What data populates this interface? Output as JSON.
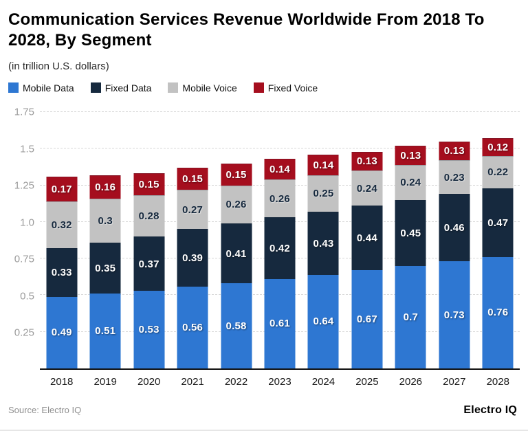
{
  "header": {
    "title": "Communication Services Revenue Worldwide From 2018 To 2028, By Segment",
    "subtitle": "(in trillion U.S. dollars)"
  },
  "legend": [
    {
      "label": "Mobile Data",
      "color": "#2e77d2"
    },
    {
      "label": "Fixed Data",
      "color": "#16293e"
    },
    {
      "label": "Mobile Voice",
      "color": "#c2c2c2"
    },
    {
      "label": "Fixed Voice",
      "color": "#a50e1e"
    }
  ],
  "chart_data": {
    "type": "bar",
    "stacked": true,
    "title": "Communication Services Revenue Worldwide From 2018 To 2028, By Segment",
    "unit_note": "(in trillion U.S. dollars)",
    "categories": [
      "2018",
      "2019",
      "2020",
      "2021",
      "2022",
      "2023",
      "2024",
      "2025",
      "2026",
      "2027",
      "2028"
    ],
    "series": [
      {
        "name": "Mobile Data",
        "color": "#2e77d2",
        "label_color": "#ffffff",
        "values": [
          0.49,
          0.51,
          0.53,
          0.56,
          0.58,
          0.61,
          0.64,
          0.67,
          0.7,
          0.73,
          0.76
        ]
      },
      {
        "name": "Fixed Data",
        "color": "#16293e",
        "label_color": "#ffffff",
        "values": [
          0.33,
          0.35,
          0.37,
          0.39,
          0.41,
          0.42,
          0.43,
          0.44,
          0.45,
          0.46,
          0.47
        ]
      },
      {
        "name": "Mobile Voice",
        "color": "#c2c2c2",
        "label_color": "#16293e",
        "values": [
          0.32,
          0.3,
          0.28,
          0.27,
          0.26,
          0.26,
          0.25,
          0.24,
          0.24,
          0.23,
          0.22
        ]
      },
      {
        "name": "Fixed Voice",
        "color": "#a50e1e",
        "label_color": "#ffffff",
        "values": [
          0.17,
          0.16,
          0.15,
          0.15,
          0.15,
          0.14,
          0.14,
          0.13,
          0.13,
          0.13,
          0.12
        ]
      }
    ],
    "ylim": [
      0,
      1.75
    ],
    "yticks": [
      "0.25",
      "0.5",
      "0.75",
      "1.0",
      "1.25",
      "1.5",
      "1.75"
    ],
    "ytick_values": [
      0.25,
      0.5,
      0.75,
      1.0,
      1.25,
      1.5,
      1.75
    ],
    "grid": "horizontal-dashed",
    "legend_position": "top"
  },
  "footer": {
    "source": "Source: Electro IQ",
    "brand": "Electro IQ"
  }
}
